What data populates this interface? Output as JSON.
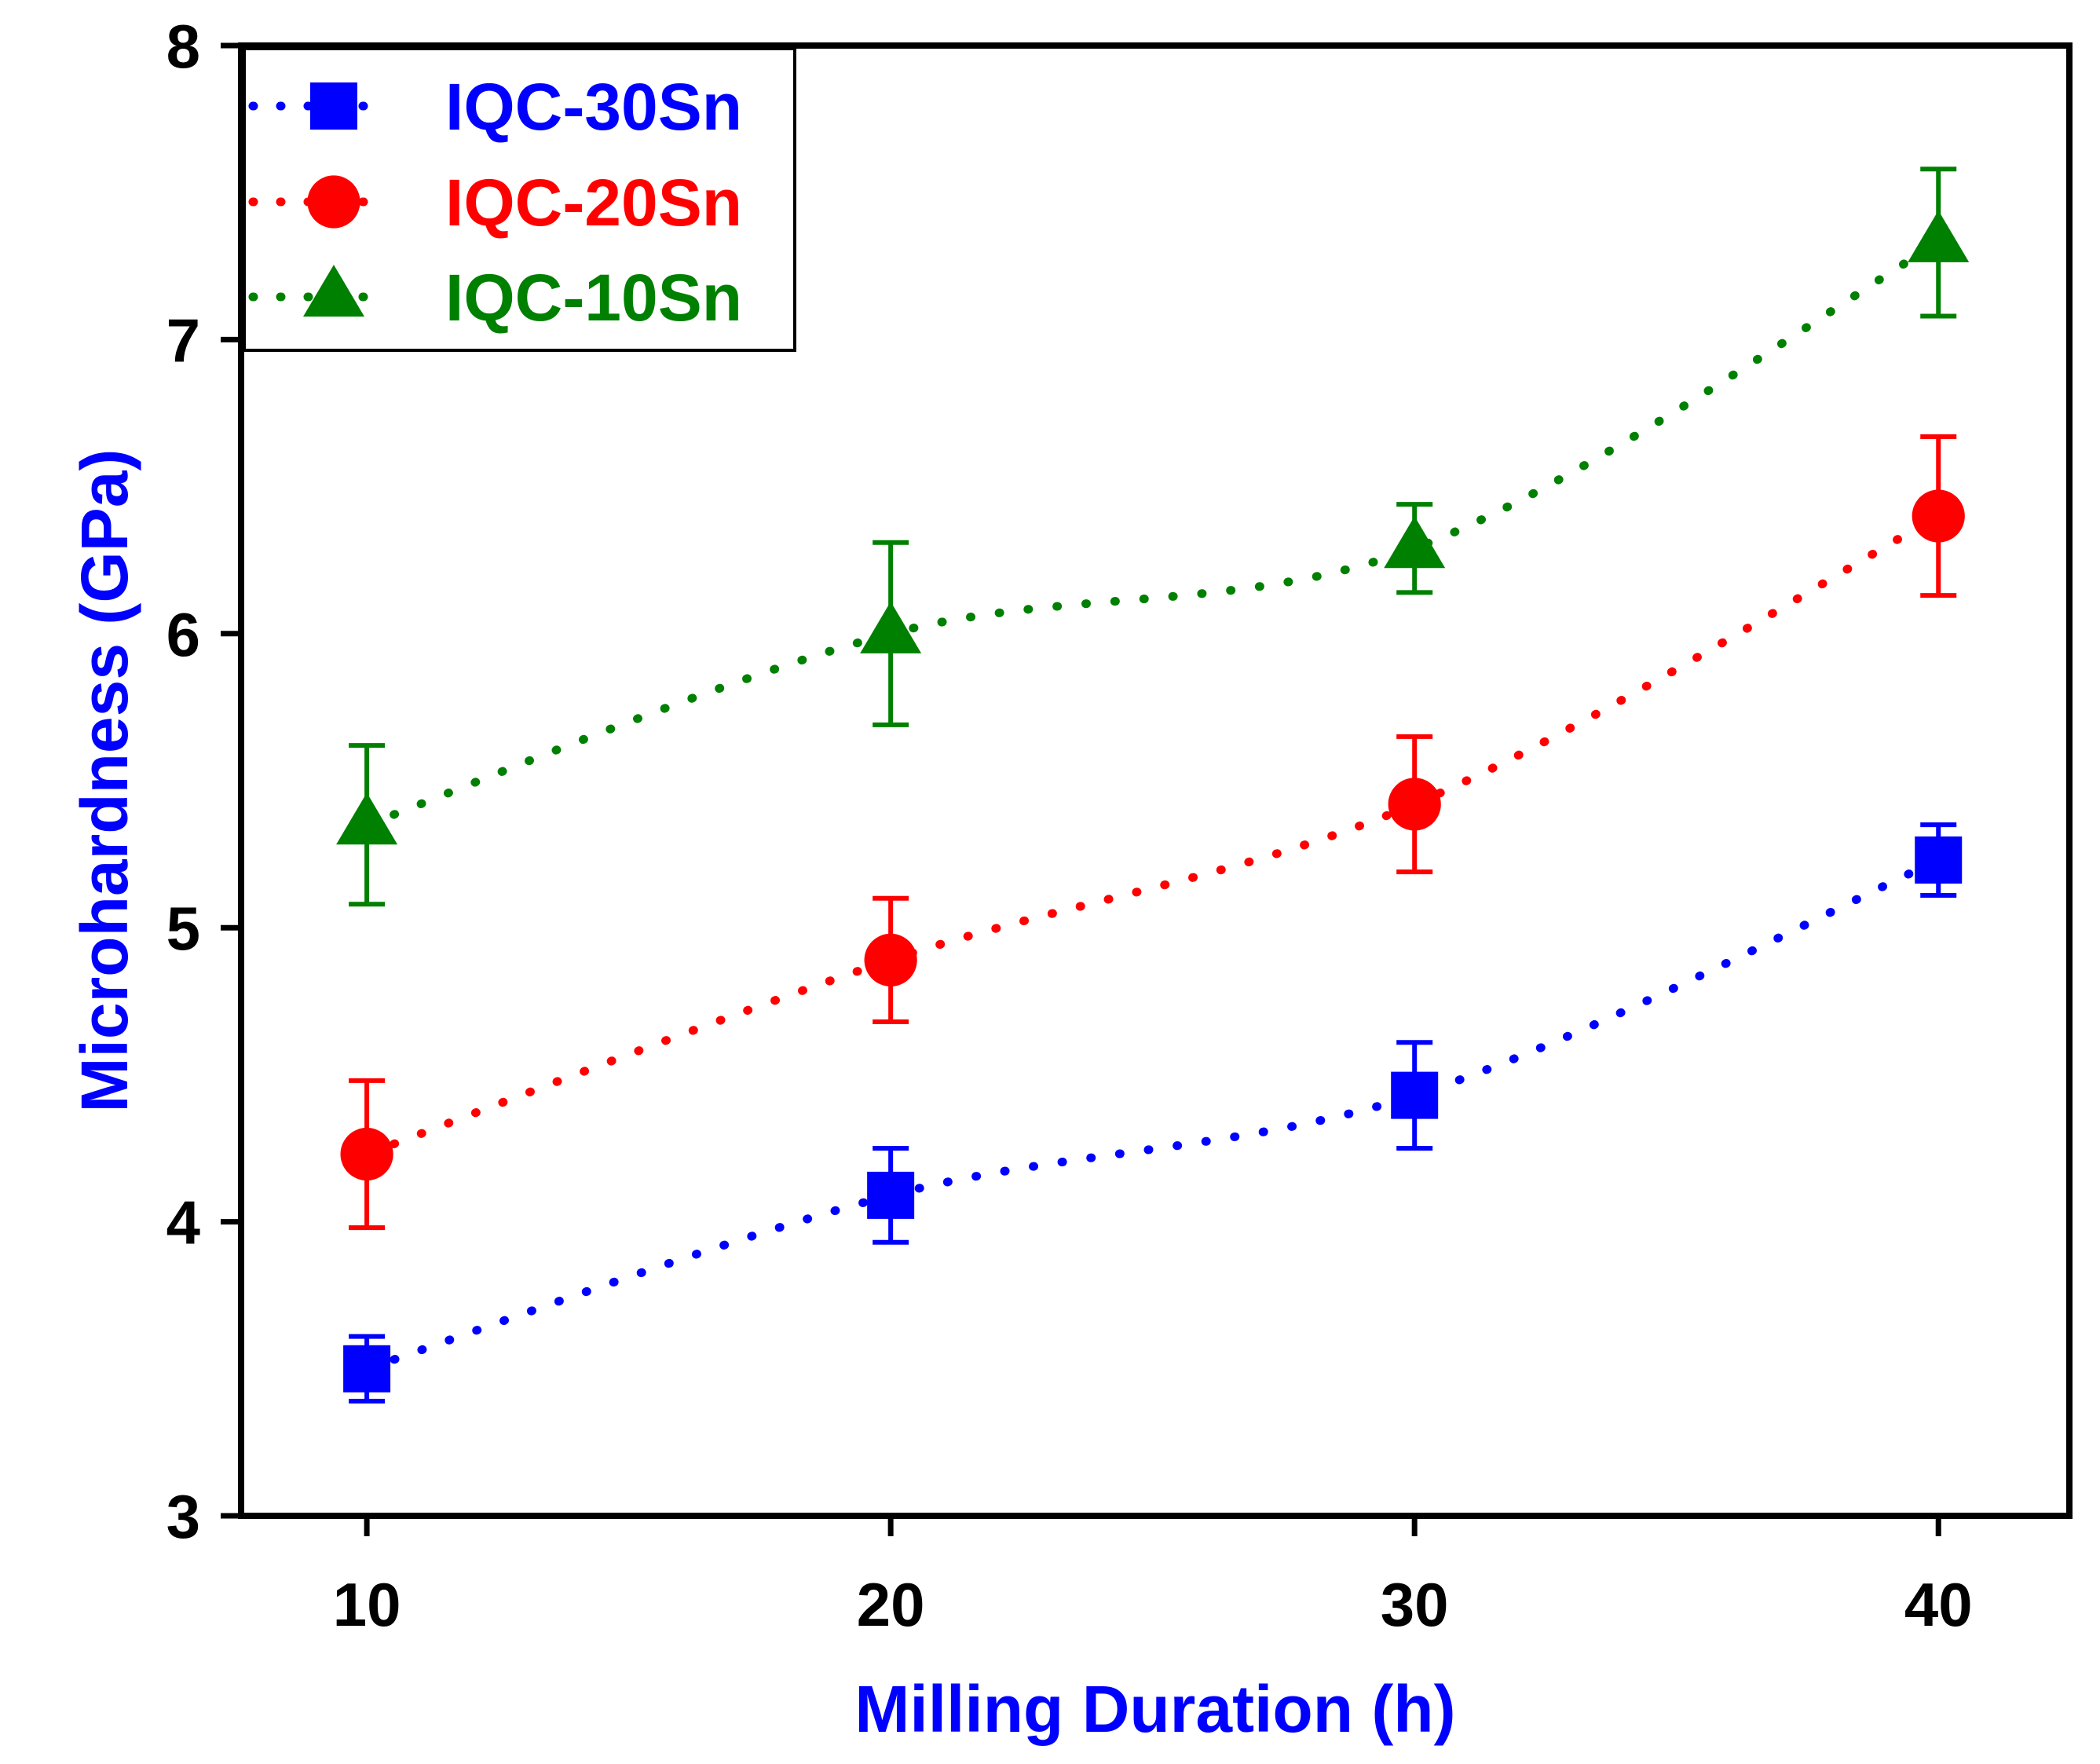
{
  "chart_data": {
    "type": "scatter",
    "title": "",
    "xlabel": "Milling Duration (h)",
    "ylabel": "Microhardness (GPa)",
    "xlim": [
      7.6,
      42.5
    ],
    "ylim": [
      3,
      8
    ],
    "xticks": [
      10,
      20,
      30,
      40
    ],
    "yticks": [
      3,
      4,
      5,
      6,
      7,
      8
    ],
    "x": [
      10,
      20,
      30,
      40
    ],
    "grid": false,
    "legend_position": "top-left",
    "line_style": "dotted",
    "series": [
      {
        "name": "IQC-30Sn",
        "marker": "square",
        "color": "#0000ff",
        "values": [
          3.5,
          4.09,
          4.43,
          5.23
        ],
        "errors": [
          0.11,
          0.16,
          0.18,
          0.12
        ]
      },
      {
        "name": "IQC-20Sn",
        "marker": "circle",
        "color": "#ff0000",
        "values": [
          4.23,
          4.89,
          5.42,
          6.4
        ],
        "errors": [
          0.25,
          0.21,
          0.23,
          0.27
        ]
      },
      {
        "name": "IQC-10Sn",
        "marker": "triangle",
        "color": "#008000",
        "values": [
          5.35,
          6.0,
          6.29,
          7.33
        ],
        "errors": [
          0.27,
          0.31,
          0.15,
          0.25
        ]
      }
    ],
    "xlabel_color": "#0000ff",
    "ylabel_color": "#0000ff"
  }
}
